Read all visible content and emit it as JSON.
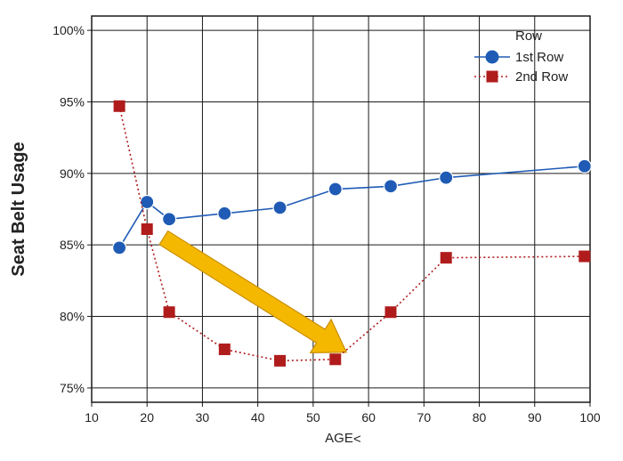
{
  "chart_data": {
    "type": "line",
    "title": "",
    "xlabel": "AGE",
    "ylabel": "Seat Belt Usage",
    "xlim": [
      10,
      100
    ],
    "ylim": [
      74,
      101
    ],
    "x_ticks": [
      "10",
      "20",
      "30",
      "40",
      "50",
      "60",
      "70",
      "80",
      "90",
      "100"
    ],
    "y_ticks": [
      {
        "value": 75,
        "label": "75%"
      },
      {
        "value": 80,
        "label": "80%"
      },
      {
        "value": 85,
        "label": "85%"
      },
      {
        "value": 90,
        "label": "90%"
      },
      {
        "value": 95,
        "label": "95%"
      },
      {
        "value": 100,
        "label": "100%"
      }
    ],
    "grid": true,
    "legend": {
      "title": "Row",
      "position": "top-right"
    },
    "series": [
      {
        "name": "1st Row",
        "color": "#1f5bb5",
        "marker": "circle",
        "line_style": "solid",
        "x": [
          15,
          20,
          24,
          34,
          44,
          54,
          64,
          74,
          99
        ],
        "y": [
          84.8,
          88.0,
          86.8,
          87.2,
          87.6,
          88.9,
          89.1,
          89.7,
          90.5
        ]
      },
      {
        "name": "2nd Row",
        "color": "#b01c1c",
        "marker": "square",
        "line_style": "dotted",
        "x": [
          15,
          20,
          24,
          34,
          44,
          54,
          64,
          74,
          99
        ],
        "y": [
          94.7,
          86.1,
          80.3,
          77.7,
          76.9,
          77.0,
          80.3,
          84.1,
          84.2
        ]
      }
    ],
    "annotations": [
      {
        "type": "arrow",
        "color": "#f5b800",
        "from": [
          23,
          85.5
        ],
        "to": [
          56,
          77.5
        ]
      }
    ]
  }
}
